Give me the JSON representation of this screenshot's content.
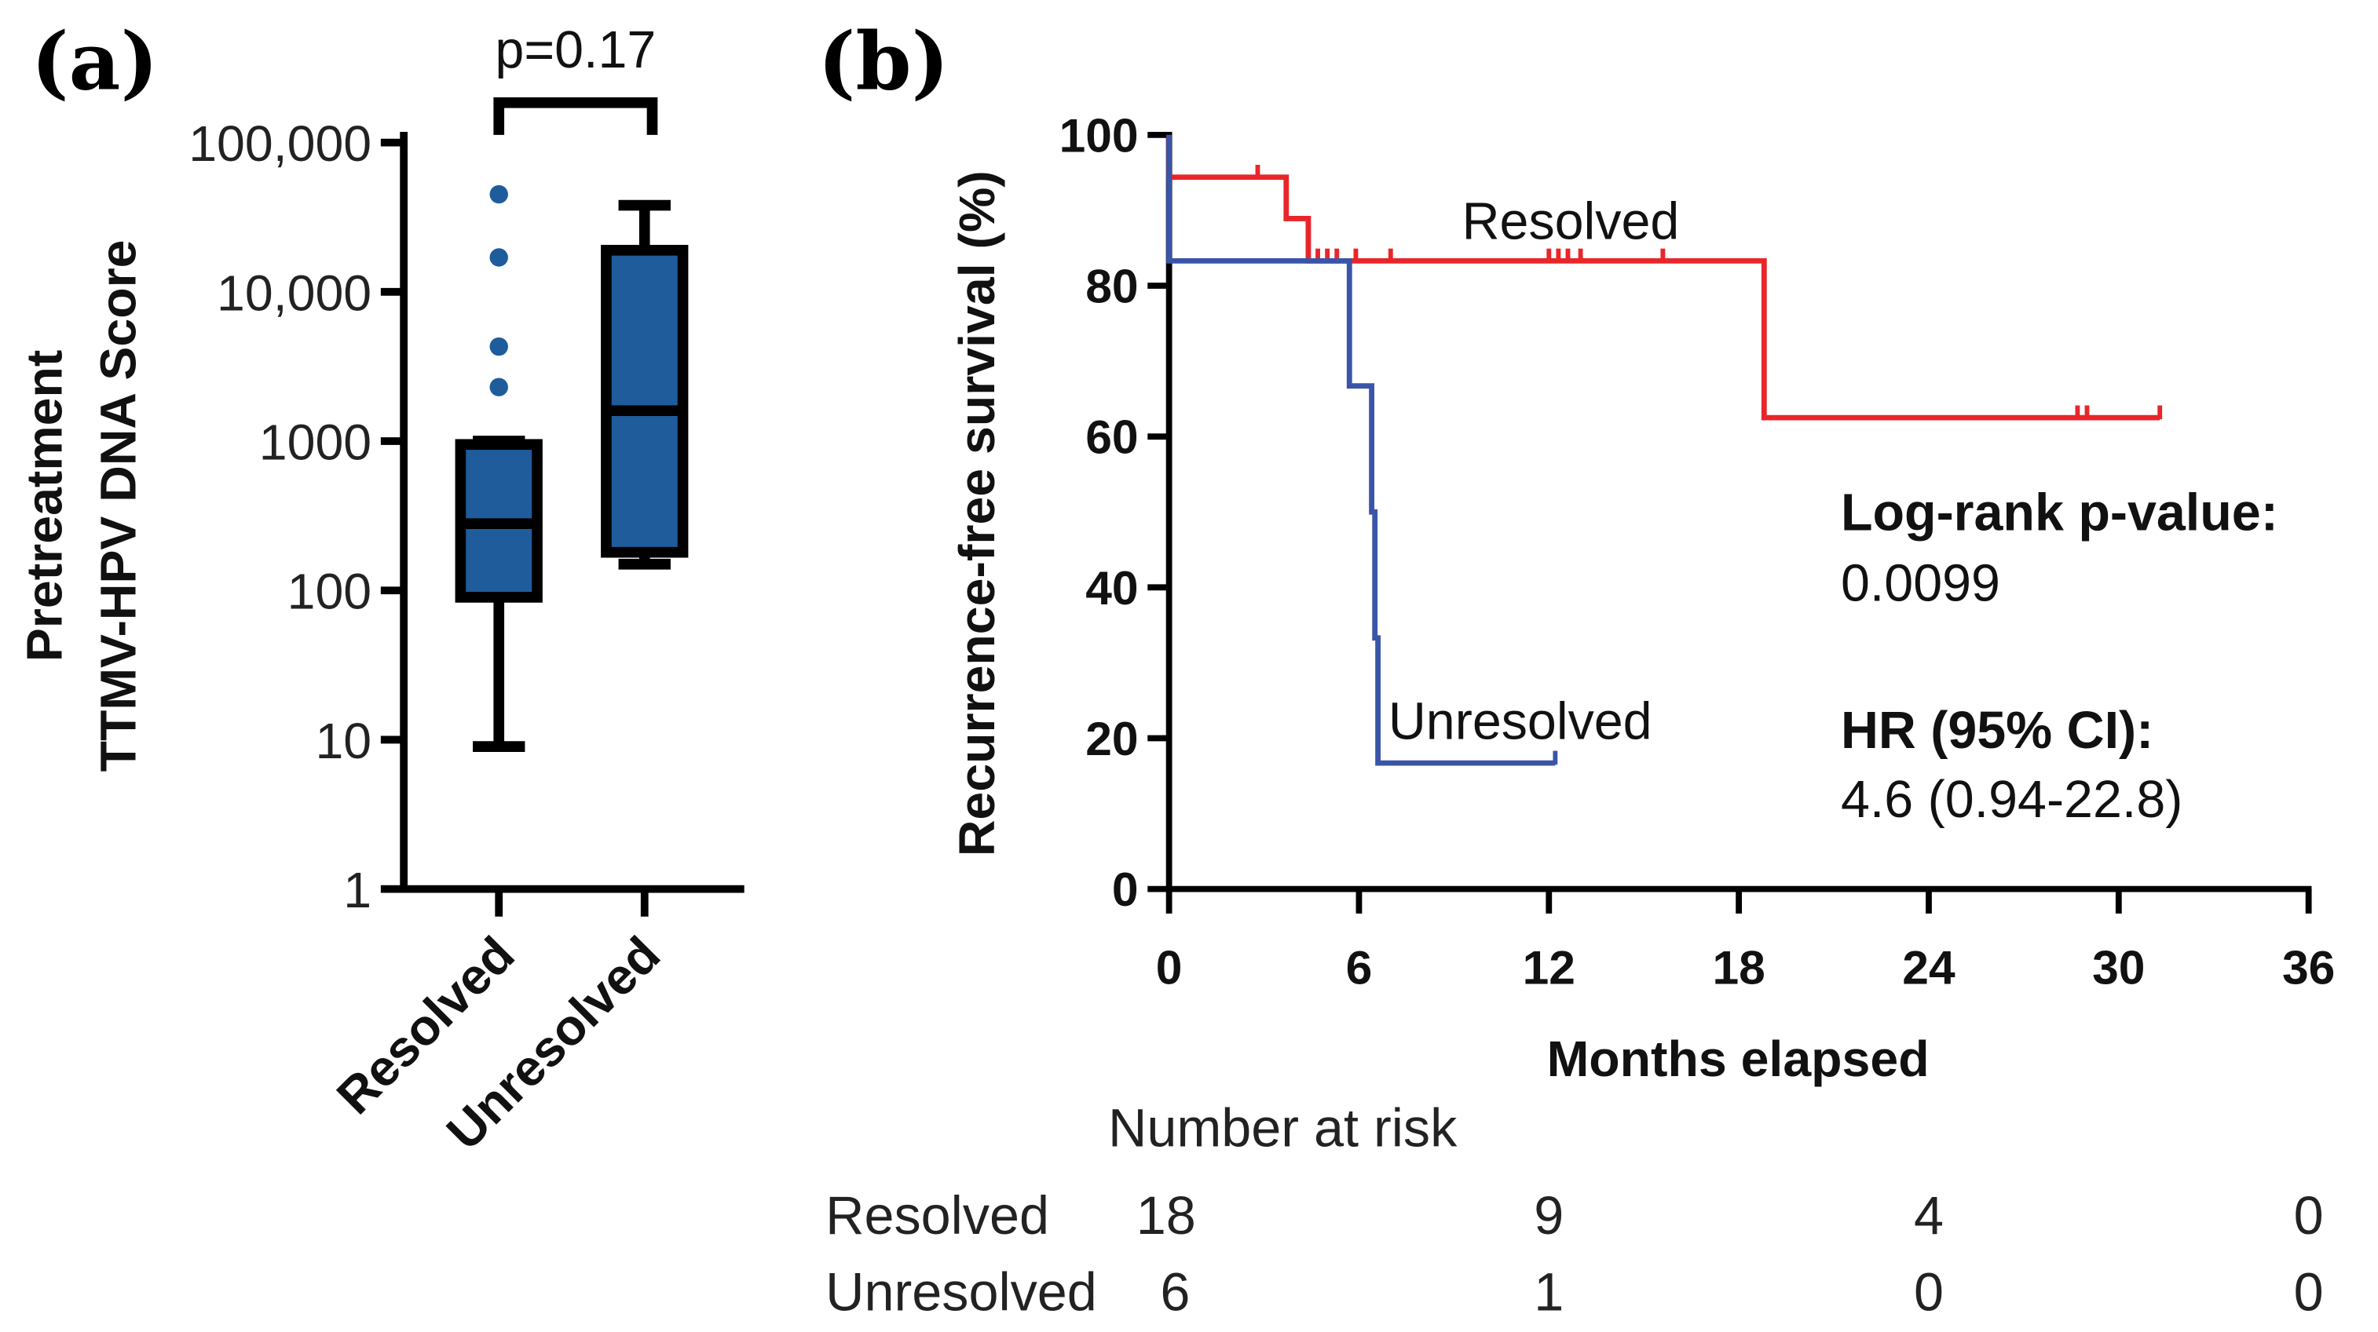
{
  "chart_data": [
    {
      "type": "box",
      "panel_label": "(a)",
      "title": "",
      "ylabel_lines": [
        "Pretreatment",
        "TTMV-HPV DNA Score"
      ],
      "yscale": "log",
      "ylim": [
        1,
        100000
      ],
      "yticks": [
        1,
        10,
        100,
        1000,
        10000,
        100000
      ],
      "ytick_labels": [
        "1",
        "10",
        "100",
        "1000",
        "10,000",
        "100,000"
      ],
      "categories": [
        "Resolved",
        "Unresolved"
      ],
      "boxes": [
        {
          "name": "Resolved",
          "whisker_low": 9,
          "q1": 90,
          "median": 280,
          "q3": 950,
          "whisker_high": 1000,
          "outliers": [
            45000,
            17000,
            4300,
            2300
          ]
        },
        {
          "name": "Unresolved",
          "whisker_low": 150,
          "q1": 180,
          "median": 1600,
          "q3": 19000,
          "whisker_high": 38000,
          "outliers": []
        }
      ],
      "box_color": "#1f5c9c",
      "annotation": "p=0.17"
    },
    {
      "type": "line",
      "subtype": "kaplan-meier",
      "panel_label": "(b)",
      "xlabel": "Months elapsed",
      "ylabel": "Recurrence-free survival (%)",
      "xlim": [
        0,
        36
      ],
      "ylim": [
        0,
        100
      ],
      "xticks": [
        0,
        6,
        12,
        18,
        24,
        30,
        36
      ],
      "yticks": [
        0,
        20,
        40,
        60,
        80,
        100
      ],
      "series": [
        {
          "name": "Resolved",
          "color": "#e8262a",
          "steps": [
            [
              0,
              100
            ],
            [
              0,
              94.4
            ],
            [
              3.7,
              94.4
            ],
            [
              3.7,
              88.9
            ],
            [
              4.4,
              88.9
            ],
            [
              4.4,
              83.3
            ],
            [
              18.8,
              83.3
            ],
            [
              18.8,
              62.5
            ],
            [
              31.3,
              62.5
            ]
          ],
          "censored": [
            [
              2.8,
              94.4
            ],
            [
              4.7,
              83.3
            ],
            [
              5.0,
              83.3
            ],
            [
              5.3,
              83.3
            ],
            [
              5.9,
              83.3
            ],
            [
              7.0,
              83.3
            ],
            [
              12.0,
              83.3
            ],
            [
              12.3,
              83.3
            ],
            [
              12.6,
              83.3
            ],
            [
              13.0,
              83.3
            ],
            [
              15.6,
              83.3
            ],
            [
              28.7,
              62.5
            ],
            [
              29.0,
              62.5
            ],
            [
              31.3,
              62.5
            ]
          ]
        },
        {
          "name": "Unresolved",
          "color": "#3a55a8",
          "steps": [
            [
              0,
              100
            ],
            [
              0,
              83.3
            ],
            [
              5.7,
              83.3
            ],
            [
              5.7,
              66.7
            ],
            [
              6.4,
              66.7
            ],
            [
              6.4,
              50
            ],
            [
              6.5,
              50
            ],
            [
              6.5,
              33.3
            ],
            [
              6.6,
              33.3
            ],
            [
              6.6,
              16.7
            ],
            [
              12.2,
              16.7
            ]
          ],
          "censored": [
            [
              12.2,
              16.7
            ]
          ]
        }
      ],
      "series_labels": [
        "Resolved",
        "Unresolved"
      ],
      "annotations": {
        "logrank_label": "Log-rank p-value:",
        "logrank_value": "0.0099",
        "hr_label": "HR (95% CI):",
        "hr_value": "4.6 (0.94-22.8)"
      },
      "risk_table": {
        "title": "Number at risk",
        "times": [
          0,
          12,
          24,
          36
        ],
        "rows": [
          {
            "name": "Resolved",
            "values": [
              "18",
              "9",
              "4",
              "0"
            ]
          },
          {
            "name": "Unresolved",
            "values": [
              "6",
              "1",
              "0",
              "0"
            ]
          }
        ]
      }
    }
  ]
}
